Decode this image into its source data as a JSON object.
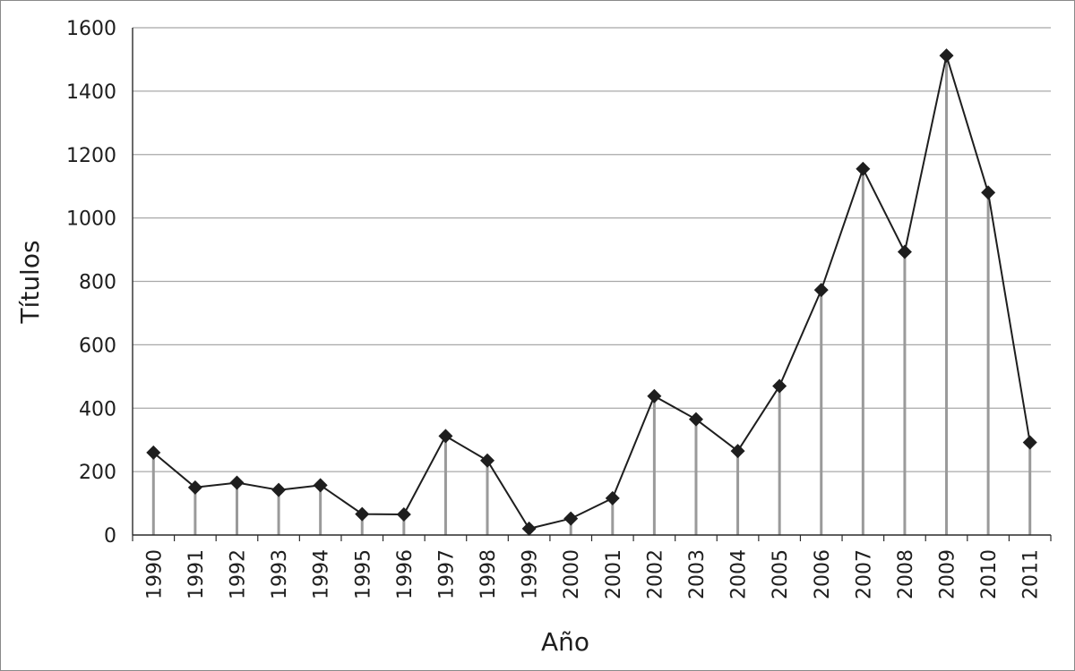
{
  "chart_data": {
    "type": "line",
    "title": "",
    "xlabel": "Año",
    "ylabel": "Títulos",
    "ylim": [
      0,
      1600
    ],
    "yticks": [
      0,
      200,
      400,
      600,
      800,
      1000,
      1200,
      1400,
      1600
    ],
    "grid": true,
    "legend": "none",
    "categories": [
      "1990",
      "1991",
      "1992",
      "1993",
      "1994",
      "1995",
      "1996",
      "1997",
      "1998",
      "1999",
      "2000",
      "2001",
      "2002",
      "2003",
      "2004",
      "2005",
      "2006",
      "2007",
      "2008",
      "2009",
      "2010",
      "2011"
    ],
    "values": [
      260,
      150,
      165,
      142,
      157,
      66,
      65,
      312,
      235,
      20,
      52,
      116,
      438,
      365,
      265,
      470,
      773,
      1155,
      893,
      1512,
      1080,
      292
    ],
    "colors": {
      "line": "#1e1e1e",
      "marker": "#1e1e1e",
      "drop_line": "#9a9a9a",
      "grid": "#a8a8a8",
      "axis": "#2a2a2a",
      "text": "#1e1e1e"
    }
  }
}
